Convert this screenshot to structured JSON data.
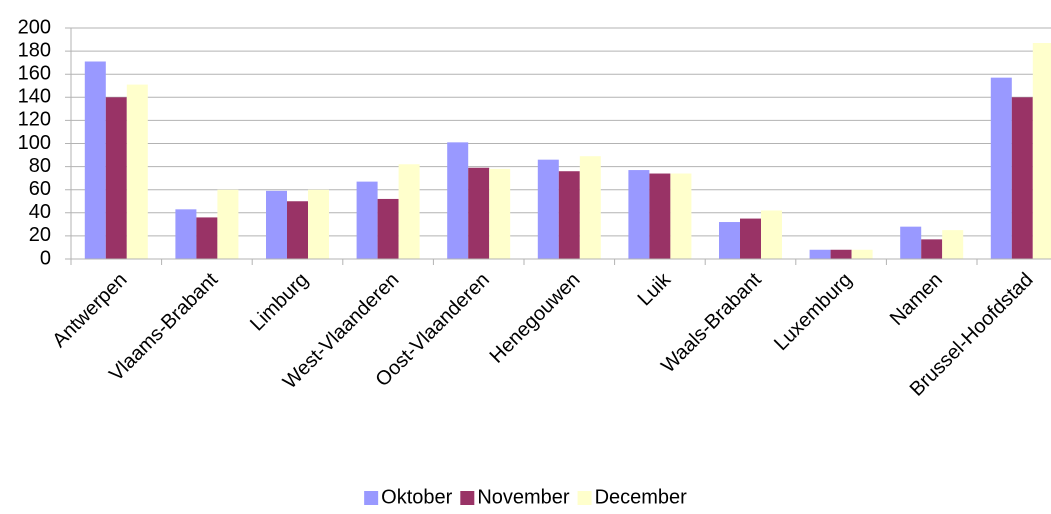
{
  "chart_data": {
    "type": "bar",
    "categories": [
      "Antwerpen",
      "Vlaams-Brabant",
      "Limburg",
      "West-Vlaanderen",
      "Oost-Vlaanderen",
      "Henegouwen",
      "Luik",
      "Waals-Brabant",
      "Luxemburg",
      "Namen",
      "Brussel-Hoofdstad"
    ],
    "series": [
      {
        "name": "Oktober",
        "color": "#9999ff",
        "values": [
          171,
          43,
          59,
          67,
          101,
          86,
          77,
          32,
          8,
          28,
          157
        ]
      },
      {
        "name": "November",
        "color": "#993366",
        "values": [
          140,
          36,
          50,
          52,
          79,
          76,
          74,
          35,
          8,
          17,
          140
        ]
      },
      {
        "name": "December",
        "color": "#ffffcc",
        "values": [
          151,
          60,
          60,
          82,
          78,
          89,
          74,
          42,
          8,
          25,
          187
        ]
      }
    ],
    "ylim": [
      0,
      200
    ],
    "yticks": [
      0,
      20,
      40,
      60,
      80,
      100,
      120,
      140,
      160,
      180,
      200
    ],
    "grid": true,
    "legend": "bottom"
  }
}
